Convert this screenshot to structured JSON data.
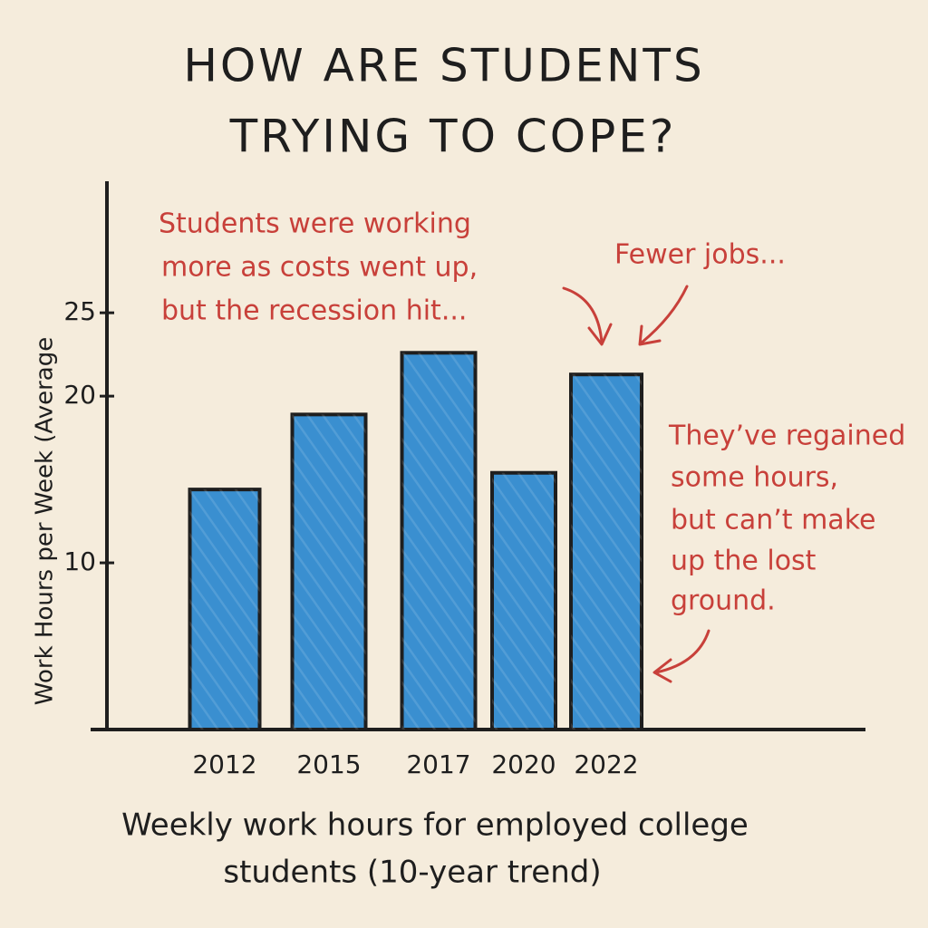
{
  "chart_data": {
    "type": "bar",
    "title": [
      "HOW ARE STUDENTS",
      "TRYING TO COPE?"
    ],
    "x_label": [
      "Weekly work hours for employed college",
      "students (10-year trend)"
    ],
    "y_label": "Work Hours per Week (Average",
    "categories": [
      "2012",
      "2015",
      "2017",
      "2020",
      "2022"
    ],
    "values": [
      14.4,
      18.9,
      22.6,
      15.4,
      21.3
    ],
    "color": "#3a8fd0",
    "ylim": [
      0,
      33
    ],
    "yticks": [
      10,
      20,
      25
    ],
    "annotations": [
      [
        "Students were working",
        "more as costs went up,",
        "but the recession hit..."
      ],
      [
        "Fewer jobs..."
      ],
      [
        "They’ve regained",
        "some hours,",
        "but can’t make",
        "up the lost",
        "ground."
      ]
    ]
  }
}
